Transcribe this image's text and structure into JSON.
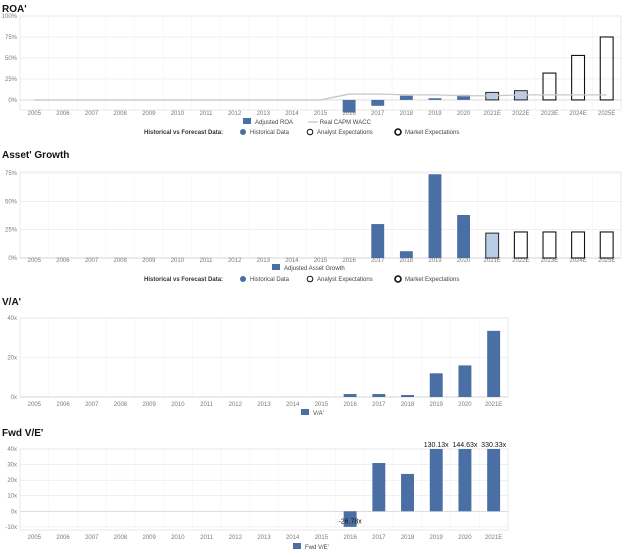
{
  "colors": {
    "historical": "#4a6fa5",
    "analyst": "#b9cde6",
    "wacc": "#c8c8c8",
    "market_outline": "#111111",
    "grid": "#e6e6e6"
  },
  "chart_data": [
    {
      "id": "roa",
      "type": "bar",
      "title": "ROA'",
      "categories": [
        "2005",
        "2006",
        "2007",
        "2008",
        "2009",
        "2010",
        "2011",
        "2012",
        "2013",
        "2014",
        "2015",
        "2016",
        "2017",
        "2018",
        "2019",
        "2020",
        "2021E",
        "2022E",
        "2023E",
        "2024E",
        "2025E"
      ],
      "yticks": [
        "0%",
        "25%",
        "50%",
        "75%",
        "100%"
      ],
      "ylim": [
        -12,
        100
      ],
      "series": [
        {
          "name": "Adjusted ROA",
          "style": "historical",
          "values": [
            null,
            null,
            null,
            null,
            null,
            null,
            null,
            null,
            null,
            null,
            null,
            -15,
            -7,
            5,
            2,
            6,
            null,
            null,
            null,
            null,
            null
          ]
        },
        {
          "name": "",
          "style": "analyst",
          "values": [
            null,
            null,
            null,
            null,
            null,
            null,
            null,
            null,
            null,
            null,
            null,
            null,
            null,
            null,
            null,
            null,
            9,
            11,
            null,
            null,
            null
          ]
        },
        {
          "name": "",
          "style": "market",
          "values": [
            null,
            null,
            null,
            null,
            null,
            null,
            null,
            null,
            null,
            null,
            null,
            null,
            null,
            null,
            null,
            null,
            null,
            null,
            32,
            53,
            75
          ]
        },
        {
          "name": "Real CAPM WACC",
          "style": "line",
          "values": [
            0,
            0,
            0,
            0,
            0,
            0,
            0,
            0,
            0,
            0,
            0,
            7,
            7,
            6,
            6,
            5,
            5,
            6,
            6,
            6,
            6
          ]
        }
      ],
      "legend": [
        "Adjusted ROA",
        "Real CAPM WACC"
      ],
      "legend2": {
        "label": "Historical vs Forecast Data:",
        "items": [
          "Historical Data",
          "Analyst Expectations",
          "Market Expectations"
        ]
      }
    },
    {
      "id": "growth",
      "type": "bar",
      "title": "Asset' Growth",
      "categories": [
        "2005",
        "2006",
        "2007",
        "2008",
        "2009",
        "2010",
        "2011",
        "2012",
        "2013",
        "2014",
        "2015",
        "2016",
        "2017",
        "2018",
        "2019",
        "2020",
        "2021E",
        "2022E",
        "2023E",
        "2024E",
        "2025E"
      ],
      "yticks": [
        "0%",
        "25%",
        "50%",
        "75%"
      ],
      "ylim": [
        0,
        76
      ],
      "series": [
        {
          "name": "Adjusted Asset Growth",
          "style": "historical",
          "values": [
            null,
            null,
            null,
            null,
            null,
            null,
            null,
            null,
            null,
            null,
            null,
            null,
            30,
            6,
            74,
            38,
            null,
            null,
            null,
            null,
            null
          ]
        },
        {
          "name": "",
          "style": "analyst",
          "values": [
            null,
            null,
            null,
            null,
            null,
            null,
            null,
            null,
            null,
            null,
            null,
            null,
            null,
            null,
            null,
            null,
            22,
            null,
            null,
            null,
            null
          ]
        },
        {
          "name": "",
          "style": "market",
          "values": [
            null,
            null,
            null,
            null,
            null,
            null,
            null,
            null,
            null,
            null,
            null,
            null,
            null,
            null,
            null,
            null,
            null,
            23,
            23,
            23,
            23
          ]
        }
      ],
      "legend": [
        "Adjusted Asset Growth"
      ],
      "legend2": {
        "label": "Historical vs Forecast Data:",
        "items": [
          "Historical Data",
          "Analyst Expectations",
          "Market Expectations"
        ]
      }
    },
    {
      "id": "va",
      "type": "bar",
      "title": "V/A'",
      "categories": [
        "2005",
        "2006",
        "2007",
        "2008",
        "2009",
        "2010",
        "2011",
        "2012",
        "2013",
        "2014",
        "2015",
        "2016",
        "2017",
        "2018",
        "2019",
        "2020",
        "2021E"
      ],
      "yticks": [
        "0x",
        "20x",
        "40x"
      ],
      "ylim": [
        0,
        40
      ],
      "series": [
        {
          "name": "V/A'",
          "style": "historical",
          "values": [
            null,
            null,
            null,
            null,
            null,
            null,
            null,
            null,
            null,
            null,
            null,
            1.5,
            1.5,
            1,
            12,
            16,
            33.5
          ]
        }
      ],
      "legend": [
        "V/A'"
      ]
    },
    {
      "id": "fwdve",
      "type": "bar",
      "title": "Fwd V/E'",
      "categories": [
        "2005",
        "2006",
        "2007",
        "2008",
        "2009",
        "2010",
        "2011",
        "2012",
        "2013",
        "2014",
        "2015",
        "2016",
        "2017",
        "2018",
        "2019",
        "2020",
        "2021E"
      ],
      "yticks": [
        "-10x",
        "0x",
        "10x",
        "20x",
        "30x",
        "40x"
      ],
      "ylim": [
        -12,
        40
      ],
      "series": [
        {
          "name": "Fwd V/E'",
          "style": "historical",
          "values": [
            null,
            null,
            null,
            null,
            null,
            null,
            null,
            null,
            null,
            null,
            null,
            -10,
            31,
            24,
            40,
            40,
            40
          ],
          "labels": [
            null,
            null,
            null,
            null,
            null,
            null,
            null,
            null,
            null,
            null,
            null,
            "-26.78x",
            null,
            null,
            "130.13x",
            "144.63x",
            "330.33x"
          ]
        }
      ],
      "legend": [
        "Fwd V/E'"
      ]
    }
  ]
}
